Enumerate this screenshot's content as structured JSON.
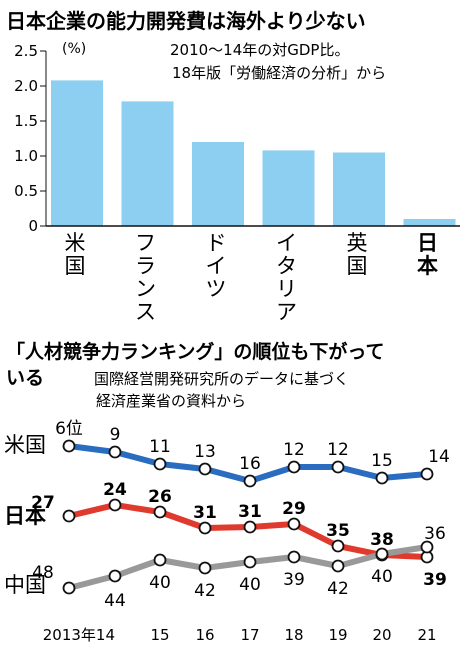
{
  "chart_data": [
    {
      "type": "bar",
      "title": "日本企業の能力開発費は海外より少ない",
      "subtitle_lines": [
        "2010～14年の対GDP比。",
        "18年版「労働経済の分析」から"
      ],
      "unit_label": "(%)",
      "categories": [
        "米国",
        "フランス",
        "ドイツ",
        "イタリア",
        "英国",
        "日本"
      ],
      "values": [
        2.08,
        1.78,
        1.2,
        1.08,
        1.05,
        0.1
      ],
      "y_ticks": [
        "0",
        "0.5",
        "1.0",
        "1.5",
        "2.0",
        "2.5"
      ],
      "ylim": [
        0,
        2.5
      ],
      "grid": false,
      "colors": {
        "bar": "#8ccff0",
        "highlight_label": "#000000"
      },
      "highlighted_category": "日本"
    },
    {
      "type": "line",
      "title_lines": [
        "「人材競争力ランキング」の順位も下がって",
        "いる"
      ],
      "subtitle_lines": [
        "国際経営開発研究所のデータに基づく",
        "経済産業省の資料から"
      ],
      "x_labels": [
        "2013年14",
        "15",
        "16",
        "17",
        "18",
        "19",
        "20",
        "21"
      ],
      "x": [
        2013,
        2014,
        2015,
        2016,
        2017,
        2018,
        2019,
        2020,
        2021
      ],
      "series": [
        {
          "name": "米国",
          "color": "#2a6cc0",
          "values": [
            6,
            9,
            11,
            13,
            16,
            12,
            12,
            15,
            14
          ],
          "labels": [
            "6位",
            "9",
            "11",
            "13",
            "16",
            "12",
            "12",
            "15",
            "14"
          ]
        },
        {
          "name": "日本",
          "color": "#e03a2e",
          "values": [
            27,
            24,
            26,
            31,
            31,
            29,
            35,
            38,
            39
          ],
          "labels": [
            "27",
            "24",
            "26",
            "31",
            "31",
            "29",
            "35",
            "38",
            "39"
          ]
        },
        {
          "name": "中国",
          "color": "#999999",
          "values": [
            48,
            44,
            40,
            42,
            40,
            39,
            42,
            40,
            36
          ],
          "labels": [
            "48",
            "44",
            "40",
            "42",
            "40",
            "39",
            "42",
            "40",
            "36"
          ]
        }
      ],
      "y_inverted": true,
      "grid": false
    }
  ]
}
